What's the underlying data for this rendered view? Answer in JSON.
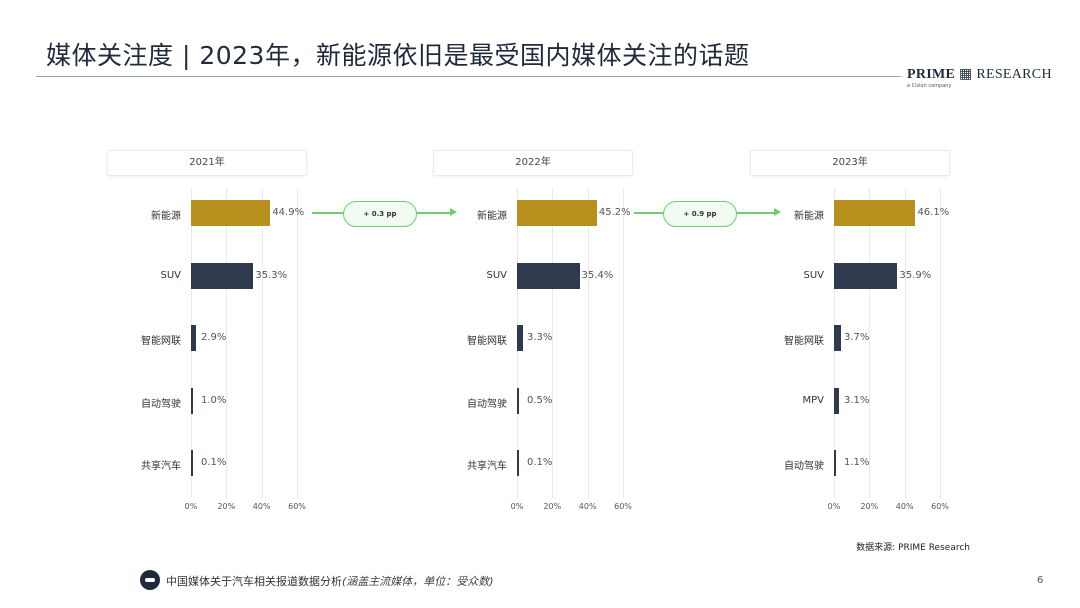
{
  "header": {
    "title": "媒体关注度 | 2023年，新能源依旧是最受国内媒体关注的话题",
    "logo_prime": "PRIME",
    "logo_research": "RESEARCH",
    "logo_sub": "a Cision company"
  },
  "chart_data": [
    {
      "type": "bar",
      "orientation": "horizontal",
      "title": "2021年",
      "categories": [
        "新能源",
        "SUV",
        "智能网联",
        "自动驾驶",
        "共享汽车"
      ],
      "values": [
        44.9,
        35.3,
        2.9,
        1.0,
        0.1
      ],
      "value_labels": [
        "44.9%",
        "35.3%",
        "2.9%",
        "1.0%",
        "0.1%"
      ],
      "xlim": [
        0,
        60
      ],
      "xticks": [
        "0%",
        "20%",
        "40%",
        "60%"
      ],
      "grid": true
    },
    {
      "type": "bar",
      "orientation": "horizontal",
      "title": "2022年",
      "categories": [
        "新能源",
        "SUV",
        "智能网联",
        "自动驾驶",
        "共享汽车"
      ],
      "values": [
        45.2,
        35.4,
        3.3,
        0.5,
        0.1
      ],
      "value_labels": [
        "45.2%",
        "35.4%",
        "3.3%",
        "0.5%",
        "0.1%"
      ],
      "xlim": [
        0,
        60
      ],
      "xticks": [
        "0%",
        "20%",
        "40%",
        "60%"
      ],
      "grid": true
    },
    {
      "type": "bar",
      "orientation": "horizontal",
      "title": "2023年",
      "categories": [
        "新能源",
        "SUV",
        "智能网联",
        "MPV",
        "自动驾驶"
      ],
      "values": [
        46.1,
        35.9,
        3.7,
        3.1,
        1.1
      ],
      "value_labels": [
        "46.1%",
        "35.9%",
        "3.7%",
        "3.1%",
        "1.1%"
      ],
      "xlim": [
        0,
        60
      ],
      "xticks": [
        "0%",
        "20%",
        "40%",
        "60%"
      ],
      "grid": true
    }
  ],
  "changes": [
    "+ 0.3 pp",
    "+ 0.9 pp"
  ],
  "colors": {
    "highlight_bar": "#b8901e",
    "bar": "#2f3a4e",
    "change": "#6fcf6f",
    "title": "#1f2a3a"
  },
  "source": "数据来源: PRIME Research",
  "footer": {
    "icon": "car-icon",
    "text": "中国媒体关于汽车相关报道数据分析",
    "note": "(涵盖主流媒体，单位：受众数)"
  },
  "page_number": "6"
}
